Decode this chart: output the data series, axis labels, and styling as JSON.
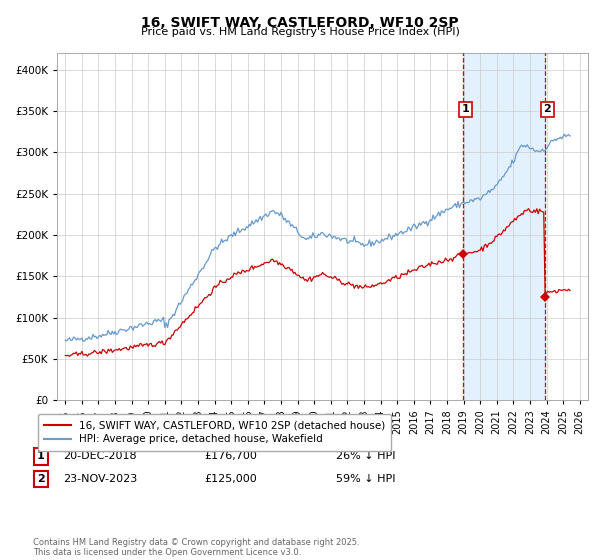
{
  "title": "16, SWIFT WAY, CASTLEFORD, WF10 2SP",
  "subtitle": "Price paid vs. HM Land Registry's House Price Index (HPI)",
  "legend_label_red": "16, SWIFT WAY, CASTLEFORD, WF10 2SP (detached house)",
  "legend_label_blue": "HPI: Average price, detached house, Wakefield",
  "marker1_date": "20-DEC-2018",
  "marker1_price": "£176,700",
  "marker1_hpi": "26% ↓ HPI",
  "marker2_date": "23-NOV-2023",
  "marker2_price": "£125,000",
  "marker2_hpi": "59% ↓ HPI",
  "footer": "Contains HM Land Registry data © Crown copyright and database right 2025.\nThis data is licensed under the Open Government Licence v3.0.",
  "xlim": [
    1994.5,
    2026.5
  ],
  "ylim": [
    0,
    420000
  ],
  "yticks": [
    0,
    50000,
    100000,
    150000,
    200000,
    250000,
    300000,
    350000,
    400000
  ],
  "xticks": [
    1995,
    1996,
    1997,
    1998,
    1999,
    2000,
    2001,
    2002,
    2003,
    2004,
    2005,
    2006,
    2007,
    2008,
    2009,
    2010,
    2011,
    2012,
    2013,
    2014,
    2015,
    2016,
    2017,
    2018,
    2019,
    2020,
    2021,
    2022,
    2023,
    2024,
    2025,
    2026
  ],
  "vline1_x": 2018.97,
  "vline2_x": 2023.9,
  "shade_start": 2018.97,
  "shade_end": 2023.9,
  "color_red": "#cc0000",
  "color_blue": "#6699cc",
  "color_shade": "#ddeeff",
  "background_color": "#ffffff",
  "grid_color": "#cccccc"
}
